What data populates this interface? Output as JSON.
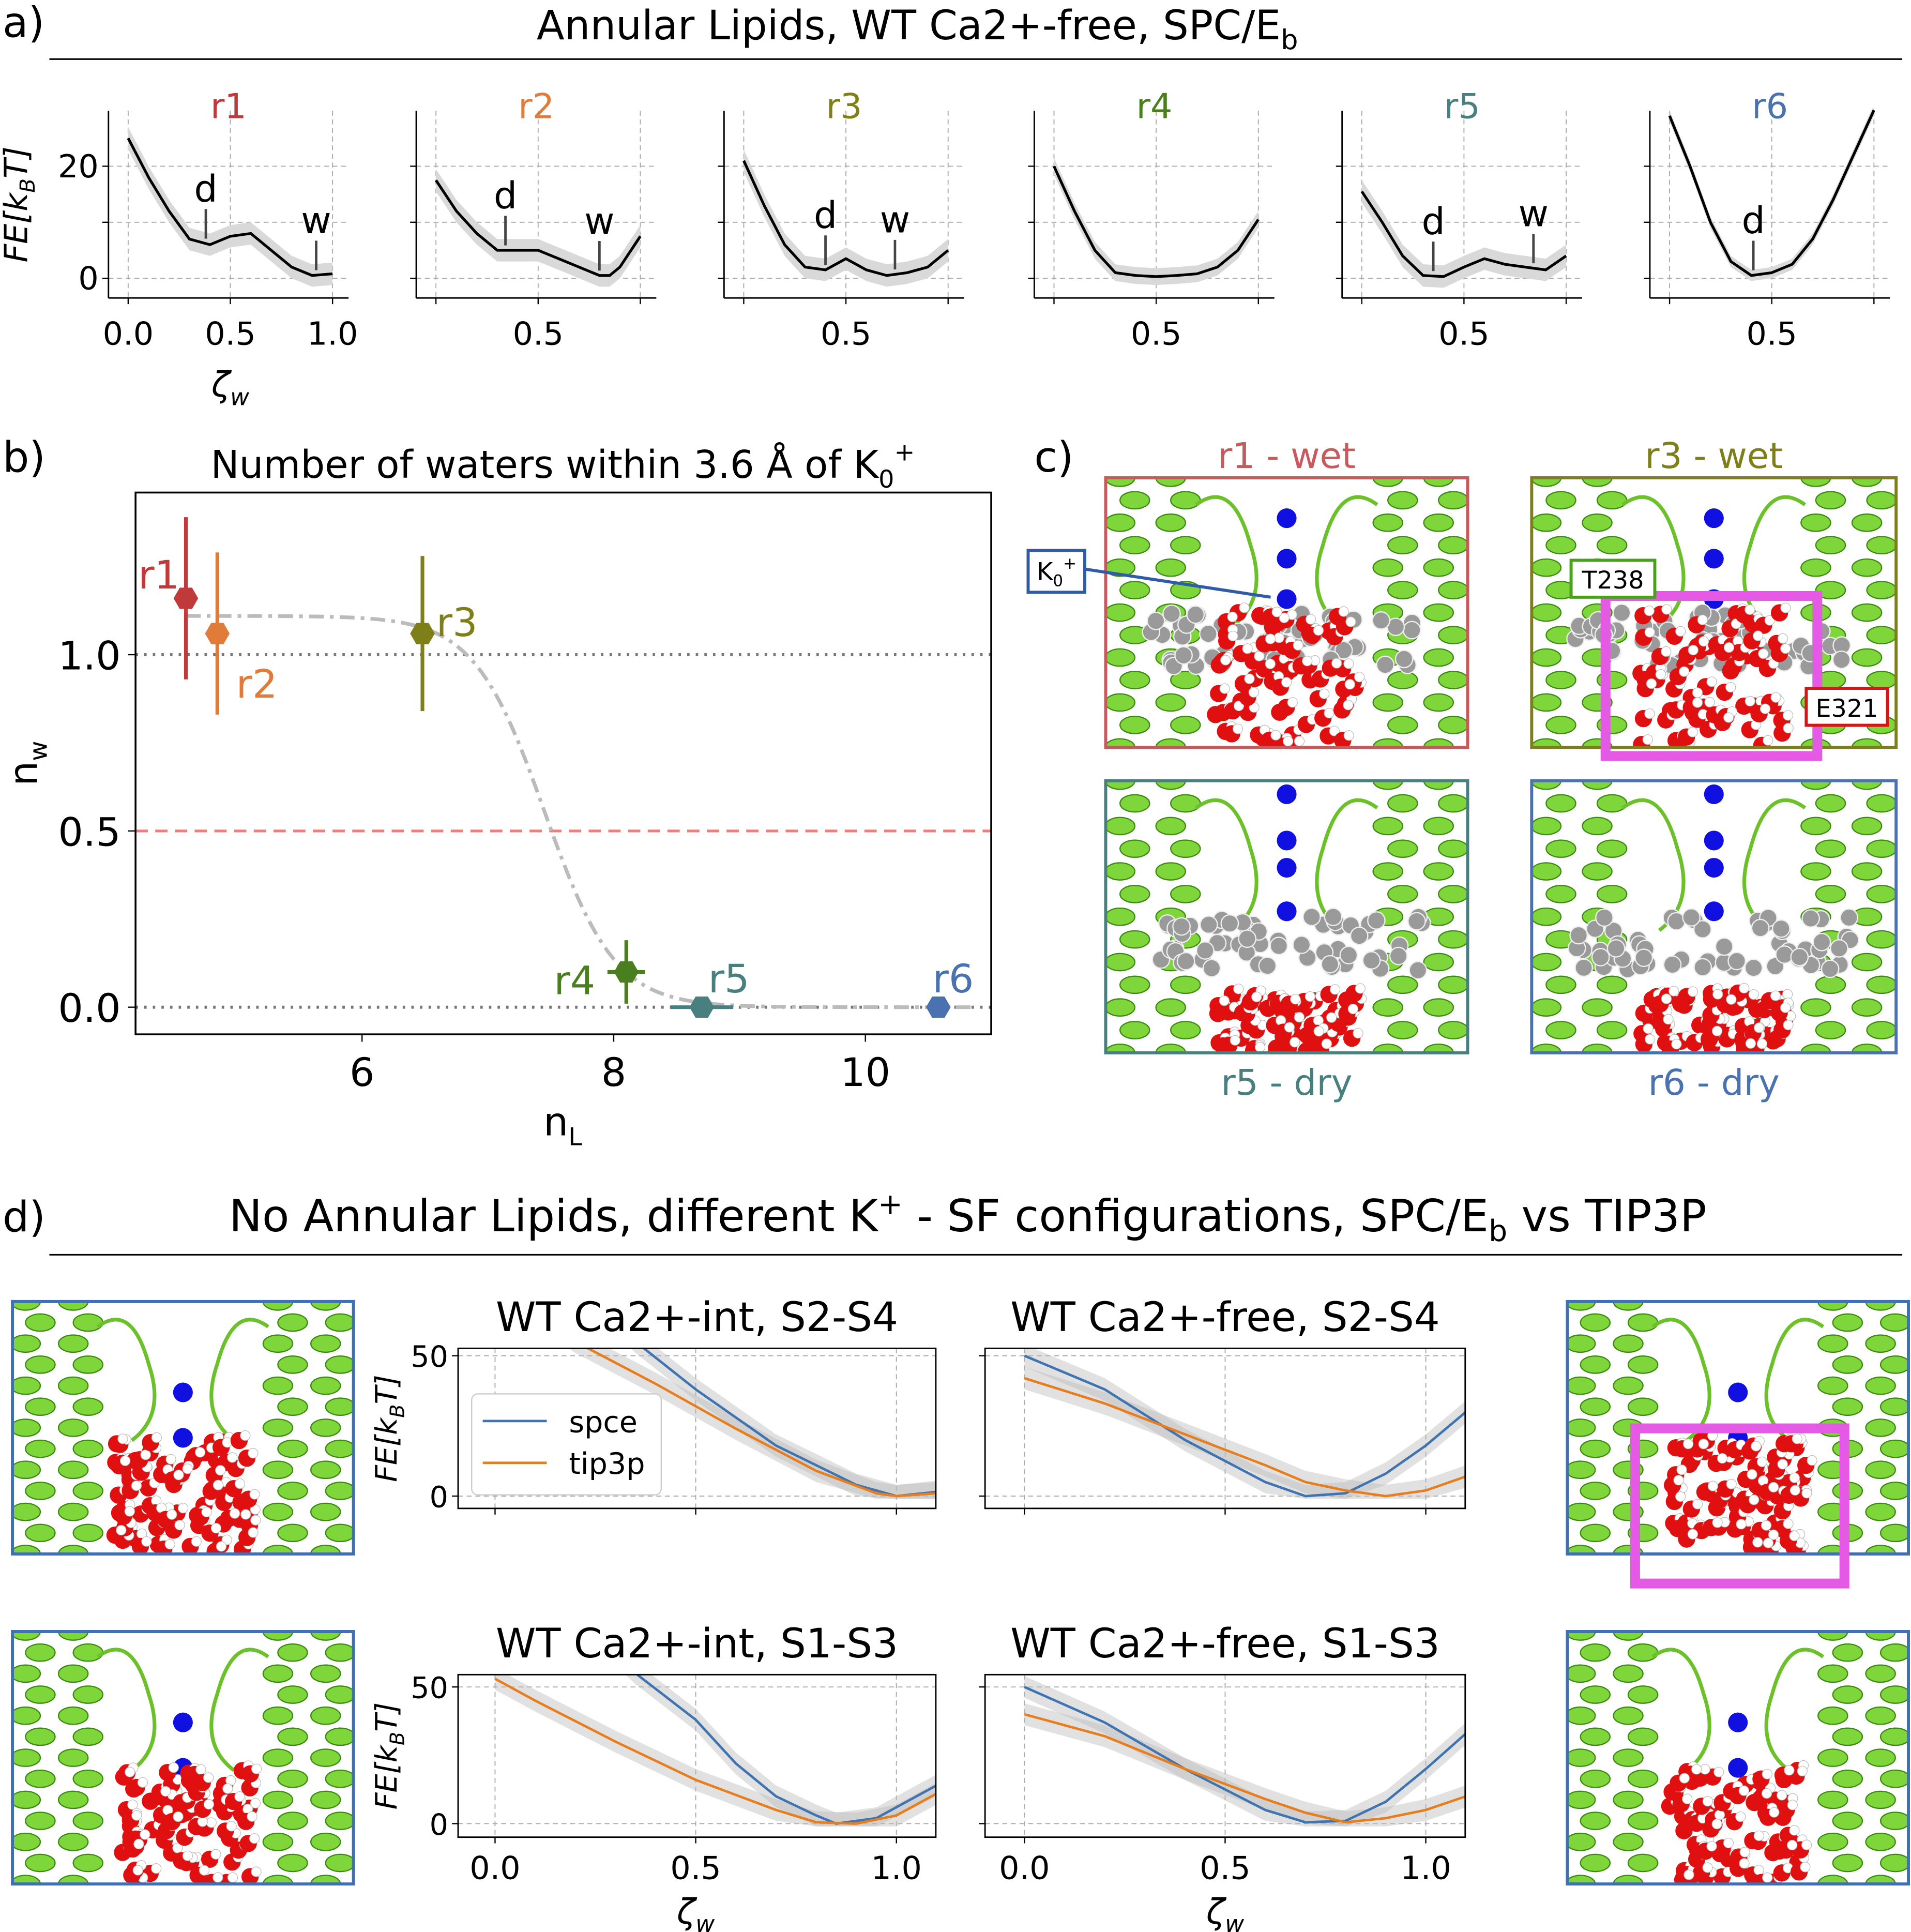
{
  "panel_labels": {
    "a": "a)",
    "b": "b)",
    "c": "c)",
    "d": "d)"
  },
  "panel_a": {
    "title": "Annular Lipids, WT Ca2+-free, SPC/E",
    "title_sub": "b"
  },
  "panel_d": {
    "title_pre": "No Annular Lipids, different K",
    "title_sup": "+",
    "title_mid": " - SF configurations, SPC/E",
    "title_sub": "b",
    "title_post": " vs TIP3P"
  },
  "panel_c": {
    "snapshots": [
      {
        "label": "r1 - wet",
        "color": "#c9595c"
      },
      {
        "label": "r3 - wet",
        "color": "#7f7f1a"
      },
      {
        "label": "r5 - dry",
        "color": "#4a7f7f"
      },
      {
        "label": "r6 - dry",
        "color": "#4a72b0"
      }
    ],
    "annotations": {
      "k0": "K",
      "k0_sub": "0",
      "k0_sup": "+",
      "t238": "T238",
      "e321": "E321"
    }
  },
  "chart_data": [
    {
      "type": "line",
      "title": "r1",
      "color": "#c0393b",
      "xlabel": "ζ",
      "xlabel_sub": "w",
      "ylabel": "FE[k",
      "ylabel_sub": "B",
      "ylabel_post": "T]",
      "xticks": [
        0.0,
        0.5,
        1.0
      ],
      "xticklabels": [
        "0.0",
        "0.5",
        "1.0"
      ],
      "yticks": [
        0,
        20
      ],
      "yticklabels": [
        "0",
        "20"
      ],
      "ygrid": [
        0,
        10,
        20
      ],
      "uncertainty": 2,
      "x": [
        0,
        0.1,
        0.2,
        0.3,
        0.4,
        0.5,
        0.6,
        0.7,
        0.8,
        0.9,
        1.0
      ],
      "y": [
        25,
        18,
        12,
        7,
        6,
        7.5,
        8,
        5,
        2,
        0.5,
        0.8
      ],
      "markers": [
        {
          "label": "d",
          "x": 0.38
        },
        {
          "label": "w",
          "x": 0.92
        }
      ]
    },
    {
      "type": "line",
      "title": "r2",
      "color": "#e07b39",
      "xticks": [
        0.0,
        0.5,
        1.0
      ],
      "xticklabels": [
        "",
        "0.5",
        ""
      ],
      "ygrid": [
        0,
        10,
        20
      ],
      "uncertainty": 2,
      "x": [
        0,
        0.1,
        0.2,
        0.3,
        0.4,
        0.5,
        0.6,
        0.7,
        0.8,
        0.85,
        0.9,
        1.0
      ],
      "y": [
        17.5,
        12,
        8,
        5,
        5,
        5,
        3.5,
        2,
        0.5,
        0.5,
        2,
        7.5
      ],
      "markers": [
        {
          "label": "d",
          "x": 0.34
        },
        {
          "label": "w",
          "x": 0.8
        }
      ]
    },
    {
      "type": "line",
      "title": "r3",
      "color": "#7f7f1a",
      "xticks": [
        0.0,
        0.5,
        1.0
      ],
      "xticklabels": [
        "",
        "0.5",
        ""
      ],
      "ygrid": [
        0,
        10,
        20
      ],
      "uncertainty": 2,
      "x": [
        0,
        0.1,
        0.2,
        0.3,
        0.4,
        0.5,
        0.55,
        0.6,
        0.7,
        0.8,
        0.9,
        1.0
      ],
      "y": [
        21,
        13,
        6,
        2,
        1.5,
        3.5,
        2.5,
        1.5,
        0.5,
        1,
        2,
        5
      ],
      "markers": [
        {
          "label": "d",
          "x": 0.4
        },
        {
          "label": "w",
          "x": 0.74
        }
      ]
    },
    {
      "type": "line",
      "title": "r4",
      "color": "#4a7f1f",
      "xticks": [
        0.0,
        0.5,
        1.0
      ],
      "xticklabels": [
        "",
        "0.5",
        ""
      ],
      "ygrid": [
        0,
        10,
        20
      ],
      "uncertainty": 1.5,
      "x": [
        0,
        0.1,
        0.2,
        0.3,
        0.4,
        0.5,
        0.6,
        0.7,
        0.8,
        0.9,
        1.0
      ],
      "y": [
        20,
        12,
        5,
        1,
        0.5,
        0.3,
        0.5,
        0.8,
        2,
        5,
        10.5
      ],
      "markers": []
    },
    {
      "type": "line",
      "title": "r5",
      "color": "#4a7f7f",
      "xticks": [
        0.0,
        0.5,
        1.0
      ],
      "xticklabels": [
        "",
        "0.5",
        ""
      ],
      "ygrid": [
        0,
        10,
        20
      ],
      "uncertainty": 2,
      "x": [
        0,
        0.1,
        0.2,
        0.3,
        0.4,
        0.5,
        0.6,
        0.7,
        0.8,
        0.9,
        1.0
      ],
      "y": [
        15.5,
        10,
        4,
        0.5,
        0.3,
        2,
        3.5,
        2.5,
        2,
        1.5,
        4
      ],
      "markers": [
        {
          "label": "d",
          "x": 0.35
        },
        {
          "label": "w",
          "x": 0.84
        }
      ]
    },
    {
      "type": "line",
      "title": "r6",
      "color": "#4a72b0",
      "xticks": [
        0.0,
        0.5,
        1.0
      ],
      "xticklabels": [
        "",
        "0.5",
        ""
      ],
      "ygrid": [
        0,
        10,
        20
      ],
      "uncertainty": 1,
      "x": [
        0,
        0.1,
        0.2,
        0.3,
        0.4,
        0.5,
        0.6,
        0.7,
        0.8,
        0.9,
        1.0
      ],
      "y": [
        29,
        20,
        10,
        3,
        0.5,
        1,
        2.5,
        7,
        14,
        22,
        30
      ],
      "markers": [
        {
          "label": "d",
          "x": 0.41
        }
      ]
    },
    {
      "type": "scatter",
      "title": "Number of waters within 3.6 Å of K",
      "title_sub": "0",
      "title_sup": "+",
      "xlabel": "n",
      "xlabel_sub": "L",
      "ylabel": "n",
      "ylabel_sub": "w",
      "xlim": [
        4.2,
        11.0
      ],
      "ylim": [
        -0.077,
        1.46
      ],
      "xticks": [
        6,
        8,
        10
      ],
      "xticklabels": [
        "6",
        "8",
        "10"
      ],
      "yticks": [
        0.0,
        0.5,
        1.0
      ],
      "yticklabels": [
        "0.0",
        "0.5",
        "1.0"
      ],
      "hlines": [
        {
          "y": 1.0,
          "color": "#777777",
          "style": "dotted"
        },
        {
          "y": 0.0,
          "color": "#777777",
          "style": "dotted"
        },
        {
          "y": 0.5,
          "color": "#ee7f7f",
          "style": "dashed"
        }
      ],
      "fit": {
        "upper": 1.11,
        "lower": 0.0,
        "midpoint": 7.45,
        "width": 0.28,
        "color": "#bbbbbb",
        "style": "dash-dot"
      },
      "points": [
        {
          "name": "r1",
          "x": 4.6,
          "y": 1.16,
          "yerr": 0.23,
          "xerr": 0.0,
          "color": "#c0393b"
        },
        {
          "name": "r2",
          "x": 4.85,
          "y": 1.06,
          "yerr": 0.23,
          "xerr": 0.0,
          "color": "#e07b39"
        },
        {
          "name": "r3",
          "x": 6.48,
          "y": 1.06,
          "yerr": 0.22,
          "xerr": 0.0,
          "color": "#7f7f1a"
        },
        {
          "name": "r4",
          "x": 8.1,
          "y": 0.1,
          "yerr": 0.09,
          "xerr": 0.15,
          "color": "#4a7f1f"
        },
        {
          "name": "r5",
          "x": 8.7,
          "y": 0.0,
          "yerr": 0.0,
          "xerr": 0.25,
          "color": "#4a7f7f"
        },
        {
          "name": "r6",
          "x": 10.58,
          "y": 0.0,
          "yerr": 0.0,
          "xerr": 0.08,
          "color": "#4a72b0"
        }
      ]
    },
    {
      "type": "line",
      "title": "WT Ca2+-int, S2-S4",
      "ylabel": "FE[k",
      "ylabel_sub": "B",
      "ylabel_post": "T]",
      "xticks": [
        0.0,
        0.5,
        1.0
      ],
      "xticklabels": [
        "",
        "",
        ""
      ],
      "yticks": [
        0,
        50
      ],
      "yticklabels": [
        "0",
        "50"
      ],
      "legend": {
        "position": "upper-left",
        "entries": [
          "spce",
          "tip3p"
        ]
      },
      "series": [
        {
          "name": "spce",
          "color": "#3f74b0",
          "x": [
            0.3,
            0.35,
            0.5,
            0.7,
            0.9,
            1.0,
            1.1
          ],
          "y": [
            62,
            55,
            38,
            18,
            4,
            0,
            1.5
          ]
        },
        {
          "name": "tip3p",
          "color": "#e87d1e",
          "x": [
            0.15,
            0.2,
            0.4,
            0.6,
            0.8,
            0.95,
            1.0,
            1.1
          ],
          "y": [
            60,
            55,
            40,
            24,
            9,
            1,
            0,
            1
          ]
        }
      ]
    },
    {
      "type": "line",
      "title": "WT Ca2+-free, S2-S4",
      "xticks": [
        0.0,
        0.5,
        1.0
      ],
      "xticklabels": [
        "",
        "",
        ""
      ],
      "yticks": [
        0,
        50
      ],
      "yticklabels": [
        "",
        ""
      ],
      "series": [
        {
          "name": "spce",
          "color": "#3f74b0",
          "x": [
            0,
            0.2,
            0.4,
            0.6,
            0.7,
            0.8,
            0.9,
            1.0,
            1.1
          ],
          "y": [
            50,
            38,
            20,
            5,
            0,
            1,
            8,
            18,
            30
          ]
        },
        {
          "name": "tip3p",
          "color": "#e87d1e",
          "x": [
            0,
            0.2,
            0.4,
            0.6,
            0.7,
            0.8,
            0.9,
            1.0,
            1.1
          ],
          "y": [
            42,
            33,
            22,
            11,
            5,
            2,
            0,
            2,
            7
          ]
        }
      ]
    },
    {
      "type": "line",
      "title": "WT Ca2+-int, S1-S3",
      "xlabel": "ζ",
      "xlabel_sub": "w",
      "ylabel": "FE[k",
      "ylabel_sub": "B",
      "ylabel_post": "T]",
      "xticks": [
        0.0,
        0.5,
        1.0
      ],
      "xticklabels": [
        "0.0",
        "0.5",
        "1.0"
      ],
      "yticks": [
        0,
        50
      ],
      "yticklabels": [
        "0",
        "50"
      ],
      "series": [
        {
          "name": "spce",
          "color": "#3f74b0",
          "x": [
            0.3,
            0.35,
            0.5,
            0.6,
            0.7,
            0.8,
            0.85,
            0.95,
            1.1
          ],
          "y": [
            62,
            55,
            38,
            22,
            10,
            3,
            0,
            2,
            14
          ]
        },
        {
          "name": "tip3p",
          "color": "#e87d1e",
          "x": [
            0,
            0.1,
            0.3,
            0.5,
            0.7,
            0.8,
            0.9,
            1.0,
            1.1
          ],
          "y": [
            53,
            45,
            30,
            16,
            5,
            0.5,
            0,
            3,
            11
          ]
        }
      ]
    },
    {
      "type": "line",
      "title": "WT Ca2+-free, S1-S3",
      "xlabel": "ζ",
      "xlabel_sub": "w",
      "xticks": [
        0.0,
        0.5,
        1.0
      ],
      "xticklabels": [
        "0.0",
        "0.5",
        "1.0"
      ],
      "yticks": [
        0,
        50
      ],
      "yticklabels": [
        "",
        ""
      ],
      "series": [
        {
          "name": "spce",
          "color": "#3f74b0",
          "x": [
            0,
            0.2,
            0.4,
            0.6,
            0.7,
            0.8,
            0.9,
            1.0,
            1.1
          ],
          "y": [
            50,
            37,
            20,
            5,
            0.5,
            1,
            8,
            20,
            33
          ]
        },
        {
          "name": "tip3p",
          "color": "#e87d1e",
          "x": [
            0,
            0.2,
            0.4,
            0.6,
            0.7,
            0.8,
            0.9,
            1.0,
            1.1
          ],
          "y": [
            40,
            32,
            20,
            9,
            4,
            0.5,
            2,
            5,
            10
          ]
        }
      ]
    }
  ]
}
